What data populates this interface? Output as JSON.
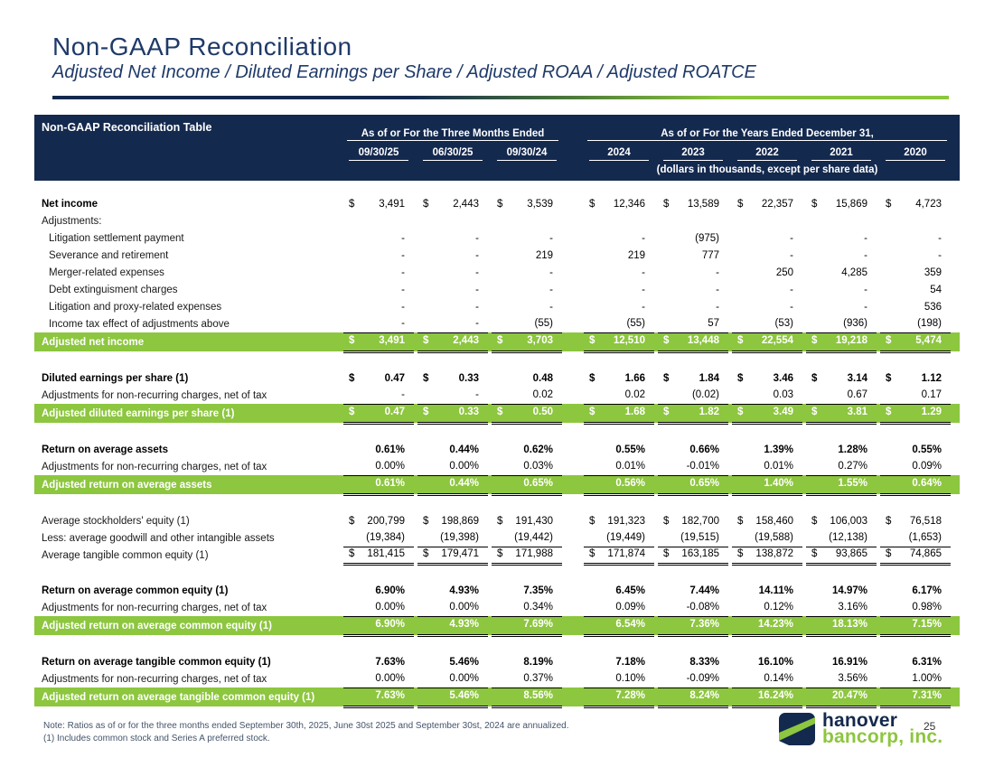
{
  "slide": {
    "title": "Non-GAAP Reconciliation",
    "subtitle": "Adjusted Net Income / Diluted Earnings per Share / Adjusted ROAA / Adjusted ROATCE",
    "page_number": "25"
  },
  "colors": {
    "navy": "#14294e",
    "green": "#8dc63f",
    "title_text": "#1f3a68"
  },
  "table": {
    "header": {
      "title": "Non-GAAP Reconciliation Table",
      "group1": "As of or For the Three Months Ended",
      "group2": "As of or For the Years Ended December 31,",
      "columns": [
        "09/30/25",
        "06/30/25",
        "09/30/24",
        "2024",
        "2023",
        "2022",
        "2021",
        "2020"
      ],
      "units_note": "(dollars in thousands, except per share data)"
    },
    "sections": [
      {
        "rows": [
          {
            "label": "Net income",
            "bold": true,
            "cells": [
              "$ 3,491",
              "$ 2,443",
              "$ 3,539",
              "$ 12,346",
              "$ 13,589",
              "$ 22,357",
              "$ 15,869",
              "$ 4,723"
            ]
          },
          {
            "label": "Adjustments:",
            "cells": [
              "",
              "",
              "",
              "",
              "",
              "",
              "",
              ""
            ]
          },
          {
            "label": "Litigation settlement payment",
            "indent": true,
            "cells": [
              "-",
              "-",
              "-",
              "-",
              "(975)",
              "-",
              "-",
              "-"
            ]
          },
          {
            "label": "Severance and retirement",
            "indent": true,
            "cells": [
              "-",
              "-",
              "219",
              "219",
              "777",
              "-",
              "-",
              "-"
            ]
          },
          {
            "label": "Merger-related expenses",
            "indent": true,
            "cells": [
              "-",
              "-",
              "-",
              "-",
              "-",
              "250",
              "4,285",
              "359"
            ]
          },
          {
            "label": "Debt extinguisment charges",
            "indent": true,
            "cells": [
              "-",
              "-",
              "-",
              "-",
              "-",
              "-",
              "-",
              "54"
            ]
          },
          {
            "label": "Litigation and proxy-related expenses",
            "indent": true,
            "cells": [
              "-",
              "-",
              "-",
              "-",
              "-",
              "-",
              "-",
              "536"
            ]
          },
          {
            "label": "Income tax effect of adjustments above",
            "indent": true,
            "underline": true,
            "cells": [
              "-",
              "-",
              "(55)",
              "(55)",
              "57",
              "(53)",
              "(936)",
              "(198)"
            ]
          },
          {
            "label": "Adjusted net income",
            "green": true,
            "dbl": true,
            "cells": [
              "$ 3,491",
              "$ 2,443",
              "$ 3,703",
              "$ 12,510",
              "$ 13,448",
              "$ 22,554",
              "$ 19,218",
              "$ 5,474"
            ]
          }
        ]
      },
      {
        "rows": [
          {
            "label": "Diluted earnings per share (1)",
            "bold": true,
            "boldv": true,
            "cells": [
              "$ 0.47",
              "$ 0.33",
              "0.48",
              "$ 1.66",
              "$ 1.84",
              "$ 3.46",
              "$ 3.14",
              "$ 1.12"
            ]
          },
          {
            "label": "Adjustments for non-recurring charges, net of tax",
            "underline": true,
            "cells": [
              "-",
              "-",
              "0.02",
              "0.02",
              "(0.02)",
              "0.03",
              "0.67",
              "0.17"
            ]
          },
          {
            "label": "Adjusted diluted earnings per share (1)",
            "green": true,
            "dbl": true,
            "cells": [
              "$ 0.47",
              "$ 0.33",
              "$ 0.50",
              "$ 1.68",
              "$ 1.82",
              "$ 3.49",
              "$ 3.81",
              "$ 1.29"
            ]
          }
        ]
      },
      {
        "rows": [
          {
            "label": "Return on average assets",
            "bold": true,
            "boldv": true,
            "cells": [
              "0.61%",
              "0.44%",
              "0.62%",
              "0.55%",
              "0.66%",
              "1.39%",
              "1.28%",
              "0.55%"
            ]
          },
          {
            "label": "Adjustments for non-recurring charges, net of tax",
            "underline": true,
            "cells": [
              "0.00%",
              "0.00%",
              "0.03%",
              "0.01%",
              "-0.01%",
              "0.01%",
              "0.27%",
              "0.09%"
            ]
          },
          {
            "label": "Adjusted return on average assets",
            "green": true,
            "dbl": true,
            "cells": [
              "0.61%",
              "0.44%",
              "0.65%",
              "0.56%",
              "0.65%",
              "1.40%",
              "1.55%",
              "0.64%"
            ]
          }
        ]
      },
      {
        "rows": [
          {
            "label": "Average stockholders' equity (1)",
            "cells": [
              "$ 200,799",
              "$ 198,869",
              "$ 191,430",
              "$ 191,323",
              "$ 182,700",
              "$ 158,460",
              "$ 106,003",
              "$ 76,518"
            ]
          },
          {
            "label": "Less: average goodwill and other intangible assets",
            "underline": true,
            "cells": [
              "(19,384)",
              "(19,398)",
              "(19,442)",
              "(19,449)",
              "(19,515)",
              "(19,588)",
              "(12,138)",
              "(1,653)"
            ]
          },
          {
            "label": "Average tangible common equity (1)",
            "dbl": true,
            "cells": [
              "$ 181,415",
              "$ 179,471",
              "$ 171,988",
              "$ 171,874",
              "$ 163,185",
              "$ 138,872",
              "$ 93,865",
              "$ 74,865"
            ]
          }
        ]
      },
      {
        "rows": [
          {
            "label": "Return on average common equity (1)",
            "bold": true,
            "boldv": true,
            "cells": [
              "6.90%",
              "4.93%",
              "7.35%",
              "6.45%",
              "7.44%",
              "14.11%",
              "14.97%",
              "6.17%"
            ]
          },
          {
            "label": "Adjustments for non-recurring charges, net of tax",
            "underline": true,
            "cells": [
              "0.00%",
              "0.00%",
              "0.34%",
              "0.09%",
              "-0.08%",
              "0.12%",
              "3.16%",
              "0.98%"
            ]
          },
          {
            "label": "Adjusted return on average common equity (1)",
            "green": true,
            "dbl": true,
            "cells": [
              "6.90%",
              "4.93%",
              "7.69%",
              "6.54%",
              "7.36%",
              "14.23%",
              "18.13%",
              "7.15%"
            ]
          }
        ]
      },
      {
        "rows": [
          {
            "label": "Return on average tangible common equity (1)",
            "bold": true,
            "boldv": true,
            "cells": [
              "7.63%",
              "5.46%",
              "8.19%",
              "7.18%",
              "8.33%",
              "16.10%",
              "16.91%",
              "6.31%"
            ]
          },
          {
            "label": "Adjustments for non-recurring charges, net of tax",
            "underline": true,
            "cells": [
              "0.00%",
              "0.00%",
              "0.37%",
              "0.10%",
              "-0.09%",
              "0.14%",
              "3.56%",
              "1.00%"
            ]
          },
          {
            "label": "Adjusted return on average tangible common equity (1)",
            "green": true,
            "dbl": true,
            "cells": [
              "7.63%",
              "5.46%",
              "8.56%",
              "7.28%",
              "8.24%",
              "16.24%",
              "20.47%",
              "7.31%"
            ]
          }
        ]
      }
    ]
  },
  "footer": {
    "note_line1": "Note: Ratios as of or for the three months ended September 30th, 2025, June 30st 2025 and September 30st, 2024 are annualized.",
    "note_line2": "(1) Includes common stock and Series A preferred stock.",
    "logo_line1": "hanover",
    "logo_line2": "bancorp, inc."
  }
}
